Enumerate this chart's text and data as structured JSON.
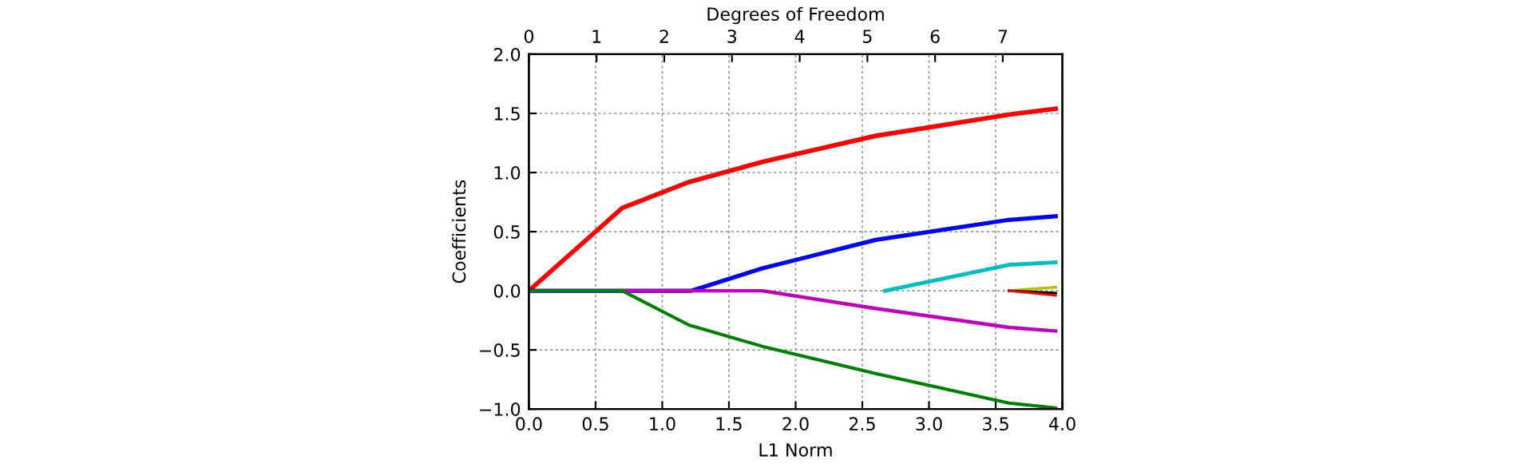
{
  "chart_data": {
    "type": "line",
    "xlabel": "L1 Norm",
    "ylabel": "Coefficients",
    "x2label": "Degrees of Freedom",
    "xlim": [
      0,
      4
    ],
    "xticks": [
      {
        "value": 0,
        "label": "0.0"
      },
      {
        "value": 0.5,
        "label": "0.5"
      },
      {
        "value": 1,
        "label": "1.0"
      },
      {
        "value": 1.5,
        "label": "1.5"
      },
      {
        "value": 2,
        "label": "2.0"
      },
      {
        "value": 2.5,
        "label": "2.5"
      },
      {
        "value": 3,
        "label": "3.0"
      },
      {
        "value": 3.5,
        "label": "3.5"
      },
      {
        "value": 4,
        "label": "4.0"
      }
    ],
    "x2lim": [
      0,
      7.88
    ],
    "x2ticks": [
      0,
      1,
      2,
      3,
      4,
      5,
      6,
      7
    ],
    "ylim": [
      -1,
      2
    ],
    "yticks": [
      {
        "value": -1,
        "label": "−1.0"
      },
      {
        "value": -0.5,
        "label": "−0.5"
      },
      {
        "value": 0,
        "label": "0.0"
      },
      {
        "value": 0.5,
        "label": "0.5"
      },
      {
        "value": 1,
        "label": "1.0"
      },
      {
        "value": 1.5,
        "label": "1.5"
      },
      {
        "value": 2,
        "label": "2.0"
      }
    ],
    "grid": true,
    "legend": false,
    "line_style": "solid",
    "marker": "none",
    "series": [
      {
        "color": "#ff0000",
        "x": [
          0,
          0.7,
          1.2,
          1.75,
          2.6,
          3.6,
          3.95
        ],
        "values": [
          0,
          0.7,
          0.92,
          1.09,
          1.31,
          1.49,
          1.54
        ]
      },
      {
        "color": "#0000ff",
        "x": [
          0,
          1.22,
          1.75,
          2.6,
          3.6,
          3.95
        ],
        "values": [
          0,
          0,
          0.19,
          0.43,
          0.6,
          0.63
        ]
      },
      {
        "color": "#00bfbf",
        "x": [
          2.67,
          3.6,
          3.95
        ],
        "values": [
          0,
          0.22,
          0.24
        ]
      },
      {
        "color": "#bf00bf",
        "x": [
          0,
          1.75,
          2.6,
          3.6,
          3.95
        ],
        "values": [
          0,
          0,
          -0.15,
          -0.31,
          -0.34
        ]
      },
      {
        "color": "#008000",
        "x": [
          0,
          0.7,
          1.2,
          1.75,
          2.6,
          3.6,
          3.95
        ],
        "values": [
          0,
          0,
          -0.29,
          -0.47,
          -0.7,
          -0.95,
          -0.99
        ]
      },
      {
        "color": "#bfbf00",
        "x": [
          3.6,
          3.95
        ],
        "values": [
          0,
          0.03
        ]
      },
      {
        "color": "#000000",
        "x": [
          3.6,
          3.95
        ],
        "values": [
          0,
          -0.02
        ]
      },
      {
        "color": "#ff0000",
        "x": [
          3.6,
          3.95
        ],
        "values": [
          0,
          -0.04
        ]
      }
    ]
  }
}
